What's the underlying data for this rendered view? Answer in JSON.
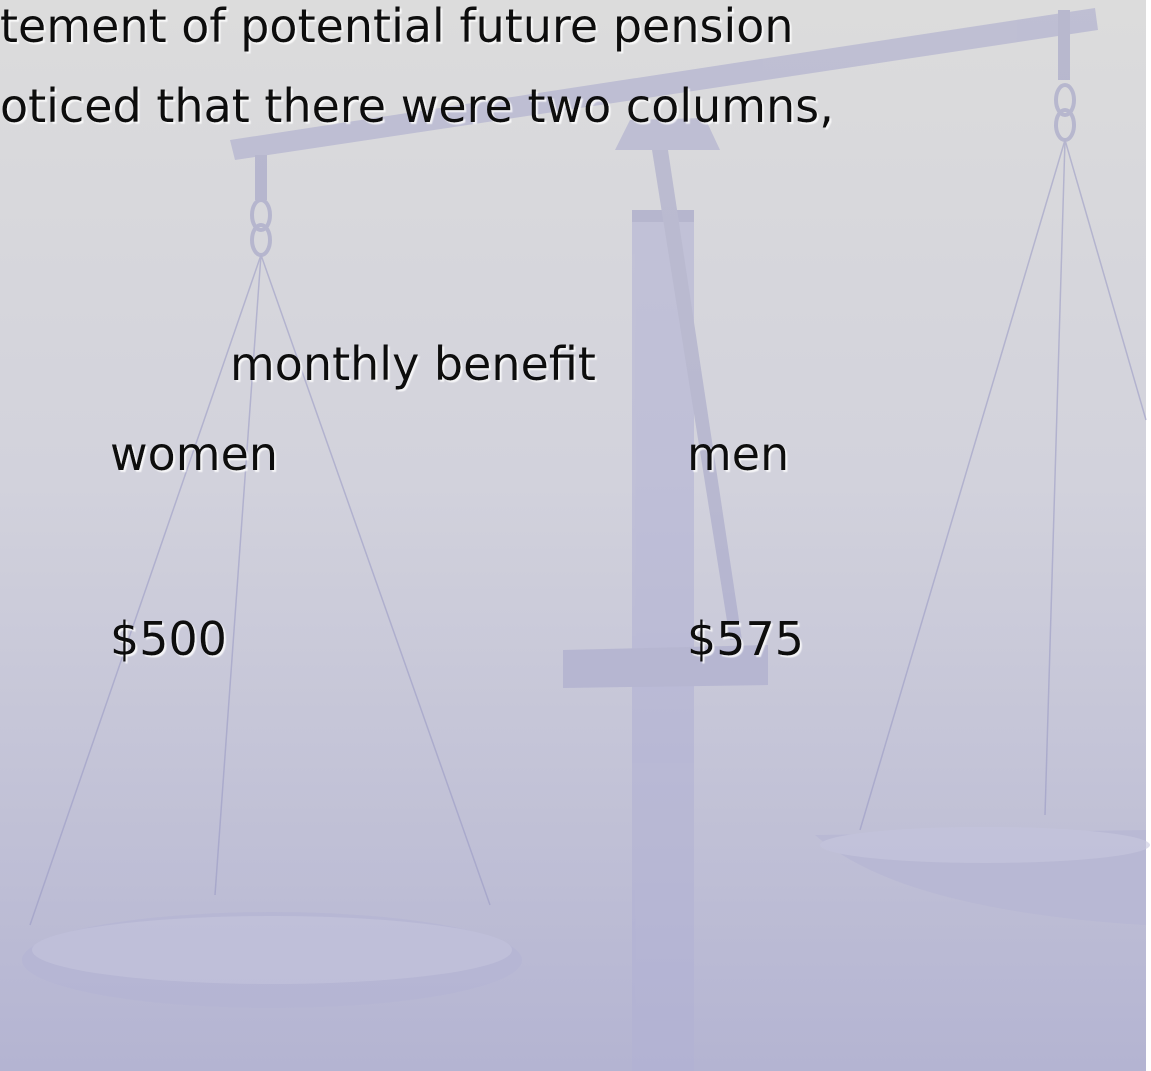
{
  "slide": {
    "text_lines": [
      "tement of potential future pension",
      "oticed that there were two columns,"
    ],
    "table": {
      "caption": "monthly benefit",
      "columns": [
        {
          "header": "women",
          "value": "$500"
        },
        {
          "header": "men",
          "value": "$575"
        }
      ]
    }
  }
}
